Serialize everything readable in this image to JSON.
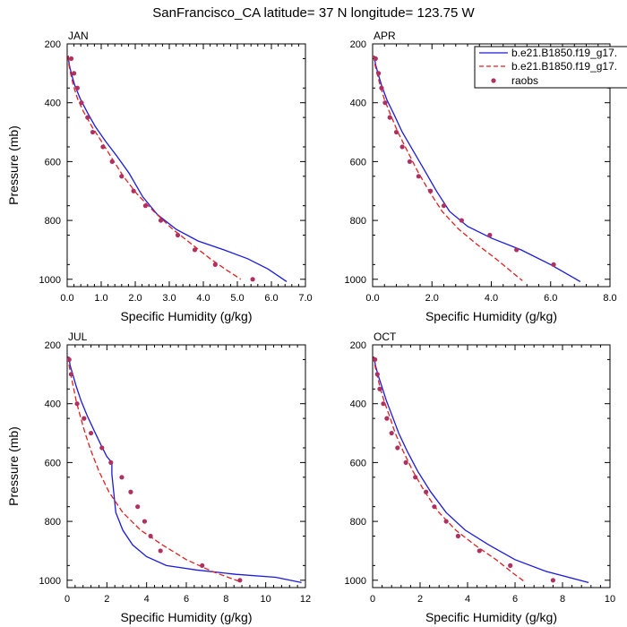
{
  "title": "SanFrancisco_CA  latitude= 37 N longitude= 123.75 W",
  "legend": {
    "items": [
      {
        "label": "b.e21.B1850.f19_g17.",
        "style": "solid",
        "color": "#1a1adc"
      },
      {
        "label": "b.e21.B1850.f19_g17.",
        "style": "dashed",
        "color": "#e02020"
      },
      {
        "label": "raobs",
        "style": "dot",
        "color": "#b03060"
      }
    ]
  },
  "chart_data": [
    {
      "type": "line",
      "panel_label": "JAN",
      "xlabel": "Specific Humidity (g/kg)",
      "ylabel": "Pressure (mb)",
      "xlim": [
        0,
        7
      ],
      "xticks": [
        "0.0",
        "1.0",
        "2.0",
        "3.0",
        "4.0",
        "5.0",
        "6.0",
        "7.0"
      ],
      "ylim": [
        200,
        1025
      ],
      "yticks": [
        "200",
        "400",
        "600",
        "800",
        "1000"
      ],
      "grid": false,
      "series": [
        {
          "style": "solid",
          "color": "#1a1adc",
          "x": [
            0.03,
            0.06,
            0.12,
            0.22,
            0.38,
            0.58,
            0.82,
            1.12,
            1.45,
            1.82,
            2.22,
            2.65,
            3.2,
            3.85,
            4.6,
            5.3,
            5.9,
            6.45
          ],
          "y": [
            240,
            270,
            300,
            340,
            385,
            430,
            480,
            530,
            580,
            640,
            720,
            780,
            830,
            870,
            900,
            930,
            965,
            1008
          ]
        },
        {
          "style": "dashed",
          "color": "#e02020",
          "x": [
            0.02,
            0.05,
            0.1,
            0.18,
            0.3,
            0.48,
            0.72,
            1.0,
            1.32,
            1.65,
            2.05,
            2.55,
            3.1,
            3.65,
            4.2,
            4.7,
            5.1
          ],
          "y": [
            240,
            270,
            300,
            340,
            385,
            430,
            480,
            530,
            590,
            650,
            710,
            770,
            830,
            880,
            930,
            970,
            1000
          ]
        },
        {
          "style": "dot",
          "color": "#b03060",
          "x": [
            0.12,
            0.2,
            0.3,
            0.42,
            0.6,
            0.75,
            1.05,
            1.32,
            1.6,
            1.95,
            2.3,
            2.75,
            3.25,
            3.75,
            4.35,
            5.45
          ],
          "y": [
            250,
            300,
            350,
            400,
            450,
            500,
            550,
            600,
            650,
            700,
            750,
            800,
            850,
            900,
            950,
            1000
          ]
        }
      ]
    },
    {
      "type": "line",
      "panel_label": "APR",
      "xlabel": "Specific Humidity (g/kg)",
      "ylabel": "",
      "xlim": [
        0,
        8
      ],
      "xticks": [
        "0.0",
        "2.0",
        "4.0",
        "6.0",
        "8.0"
      ],
      "ylim": [
        200,
        1025
      ],
      "yticks": [
        "200",
        "400",
        "600",
        "800",
        "1000"
      ],
      "grid": false,
      "series": [
        {
          "style": "solid",
          "color": "#1a1adc",
          "x": [
            0.05,
            0.1,
            0.18,
            0.3,
            0.48,
            0.72,
            1.0,
            1.35,
            1.75,
            2.15,
            2.6,
            3.2,
            4.0,
            5.0,
            6.0,
            7.0
          ],
          "y": [
            240,
            270,
            300,
            340,
            390,
            440,
            500,
            560,
            630,
            700,
            770,
            820,
            860,
            900,
            950,
            1008
          ]
        },
        {
          "style": "dashed",
          "color": "#e02020",
          "x": [
            0.04,
            0.08,
            0.15,
            0.25,
            0.4,
            0.6,
            0.85,
            1.15,
            1.5,
            1.9,
            2.35,
            2.9,
            3.5,
            4.15,
            4.75,
            5.05
          ],
          "y": [
            240,
            270,
            300,
            340,
            390,
            440,
            500,
            560,
            630,
            700,
            770,
            830,
            880,
            930,
            980,
            1005
          ]
        },
        {
          "style": "dot",
          "color": "#b03060",
          "x": [
            0.1,
            0.2,
            0.3,
            0.42,
            0.58,
            0.8,
            1.0,
            1.25,
            1.55,
            1.95,
            2.4,
            3.0,
            3.95,
            4.85,
            6.1
          ],
          "y": [
            250,
            300,
            350,
            400,
            450,
            500,
            550,
            600,
            650,
            700,
            750,
            800,
            850,
            900,
            950
          ]
        }
      ]
    },
    {
      "type": "line",
      "panel_label": "JUL",
      "xlabel": "Specific Humidity (g/kg)",
      "ylabel": "Pressure (mb)",
      "xlim": [
        0,
        12
      ],
      "xticks": [
        "0",
        "2",
        "4",
        "6",
        "8",
        "10",
        "12"
      ],
      "ylim": [
        200,
        1025
      ],
      "yticks": [
        "200",
        "400",
        "600",
        "800",
        "1000"
      ],
      "grid": false,
      "series": [
        {
          "style": "solid",
          "color": "#1a1adc",
          "x": [
            0.08,
            0.15,
            0.28,
            0.45,
            0.7,
            1.0,
            1.35,
            1.7,
            2.0,
            2.25,
            2.25,
            2.45,
            2.8,
            3.3,
            4.0,
            5.0,
            6.5,
            8.5,
            10.5,
            11.8
          ],
          "y": [
            240,
            270,
            300,
            340,
            390,
            440,
            490,
            540,
            580,
            600,
            640,
            770,
            830,
            880,
            920,
            950,
            965,
            980,
            990,
            1008
          ]
        },
        {
          "style": "dashed",
          "color": "#e02020",
          "x": [
            0.05,
            0.1,
            0.18,
            0.3,
            0.45,
            0.65,
            0.9,
            1.2,
            1.6,
            2.1,
            2.8,
            3.7,
            4.8,
            6.0,
            7.3,
            8.7
          ],
          "y": [
            240,
            270,
            300,
            340,
            390,
            440,
            500,
            560,
            630,
            700,
            770,
            830,
            880,
            930,
            970,
            1005
          ]
        },
        {
          "style": "dot",
          "color": "#b03060",
          "x": [
            0.1,
            0.2,
            0.5,
            0.85,
            1.2,
            1.75,
            2.2,
            2.75,
            3.2,
            3.55,
            3.9,
            4.2,
            4.7,
            6.8,
            8.7
          ],
          "y": [
            250,
            300,
            400,
            450,
            500,
            550,
            600,
            650,
            700,
            750,
            800,
            850,
            900,
            950,
            1000
          ]
        }
      ]
    },
    {
      "type": "line",
      "panel_label": "OCT",
      "xlabel": "Specific Humidity (g/kg)",
      "ylabel": "",
      "xlim": [
        0,
        10
      ],
      "xticks": [
        "0",
        "2",
        "4",
        "6",
        "8",
        "10"
      ],
      "ylim": [
        200,
        1025
      ],
      "yticks": [
        "200",
        "400",
        "600",
        "800",
        "1000"
      ],
      "grid": false,
      "series": [
        {
          "style": "solid",
          "color": "#1a1adc",
          "x": [
            0.05,
            0.12,
            0.22,
            0.38,
            0.58,
            0.82,
            1.1,
            1.45,
            1.9,
            2.45,
            3.1,
            3.9,
            4.9,
            6.0,
            7.3,
            9.1
          ],
          "y": [
            240,
            270,
            300,
            340,
            390,
            440,
            500,
            560,
            630,
            700,
            770,
            830,
            880,
            930,
            970,
            1008
          ]
        },
        {
          "style": "dashed",
          "color": "#e02020",
          "x": [
            0.04,
            0.1,
            0.18,
            0.3,
            0.48,
            0.7,
            0.95,
            1.28,
            1.7,
            2.2,
            2.8,
            3.5,
            4.3,
            5.2,
            5.9,
            6.4
          ],
          "y": [
            240,
            270,
            300,
            340,
            390,
            440,
            500,
            560,
            630,
            700,
            770,
            830,
            880,
            930,
            975,
            1005
          ]
        },
        {
          "style": "dot",
          "color": "#b03060",
          "x": [
            0.1,
            0.2,
            0.3,
            0.45,
            0.6,
            0.8,
            1.05,
            1.4,
            1.8,
            2.25,
            2.6,
            3.1,
            3.6,
            4.5,
            5.8,
            7.6
          ],
          "y": [
            250,
            300,
            350,
            400,
            450,
            500,
            550,
            600,
            650,
            700,
            750,
            800,
            850,
            900,
            950,
            1000
          ]
        }
      ]
    }
  ]
}
